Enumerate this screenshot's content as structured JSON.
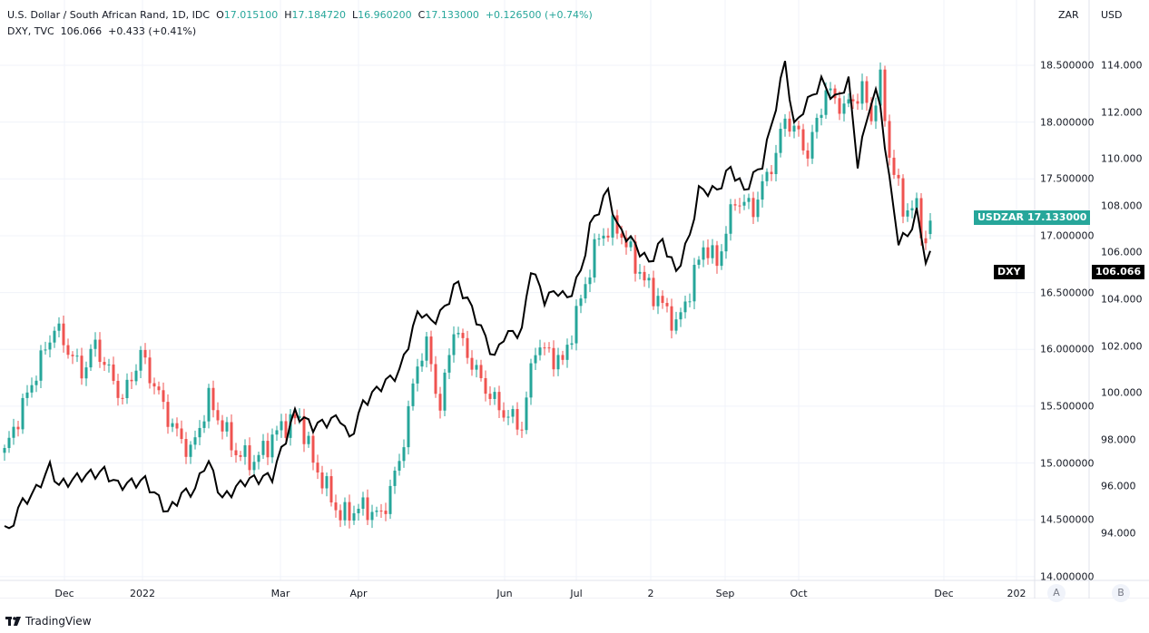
{
  "legend": {
    "main_title": "U.S. Dollar / South African Rand, 1D, IDC",
    "open_label": "O",
    "open": "17.015100",
    "high_label": "H",
    "high": "17.184720",
    "low_label": "L",
    "low": "16.960200",
    "close_label": "C",
    "close": "17.133000",
    "change": "+0.126500 (+0.74%)",
    "compare_title": "DXY, TVC",
    "compare_value": "106.066",
    "compare_change": "+0.433 (+0.41%)"
  },
  "axes": {
    "left_unit": "ZAR",
    "right_unit": "USD",
    "zar_ticks": [
      "18.500000",
      "18.000000",
      "17.500000",
      "17.000000",
      "16.500000",
      "16.000000",
      "15.500000",
      "15.000000",
      "14.500000",
      "14.000000"
    ],
    "usd_ticks": [
      "114.000",
      "112.000",
      "110.000",
      "108.000",
      "106.000",
      "104.000",
      "102.000",
      "100.000",
      "98.000",
      "96.000",
      "94.000"
    ],
    "time_ticks": [
      "Dec",
      "2022",
      "Mar",
      "Apr",
      "Jun",
      "Jul",
      "2",
      "Sep",
      "Oct",
      "Dec",
      "202"
    ],
    "btn_a": "A",
    "btn_b": "B"
  },
  "tags": {
    "usdzar_name": "USDZAR",
    "usdzar_value": "17.133000",
    "dxy_name": "DXY",
    "dxy_value": "106.066"
  },
  "colors": {
    "up": "#26a69a",
    "down": "#ef5350",
    "dxy": "#000000"
  },
  "footer": {
    "brand": "TradingView"
  },
  "chart_data": {
    "type": "candlestick+line",
    "bars": 205,
    "usdzar_keypoints": [
      [
        0,
        15.09
      ],
      [
        3,
        15.4
      ],
      [
        11,
        16.2
      ],
      [
        17,
        15.8
      ],
      [
        20,
        16.04
      ],
      [
        26,
        15.56
      ],
      [
        30,
        15.96
      ],
      [
        37,
        15.32
      ],
      [
        41,
        15.09
      ],
      [
        45,
        15.56
      ],
      [
        51,
        15.09
      ],
      [
        55,
        15.01
      ],
      [
        61,
        15.32
      ],
      [
        65,
        15.4
      ],
      [
        68,
        15.01
      ],
      [
        74,
        14.53
      ],
      [
        79,
        14.61
      ],
      [
        83,
        14.53
      ],
      [
        87,
        15.01
      ],
      [
        91,
        15.88
      ],
      [
        93,
        16.04
      ],
      [
        96,
        15.48
      ],
      [
        99,
        16.2
      ],
      [
        105,
        15.72
      ],
      [
        109,
        15.48
      ],
      [
        114,
        15.32
      ],
      [
        117,
        16.04
      ],
      [
        123,
        15.88
      ],
      [
        127,
        16.44
      ],
      [
        131,
        17.0
      ],
      [
        135,
        17.08
      ],
      [
        141,
        16.6
      ],
      [
        147,
        16.28
      ],
      [
        148,
        16.2
      ],
      [
        151,
        16.52
      ],
      [
        154,
        16.92
      ],
      [
        157,
        16.76
      ],
      [
        161,
        17.32
      ],
      [
        165,
        17.24
      ],
      [
        170,
        17.72
      ],
      [
        172,
        18.04
      ],
      [
        175,
        17.88
      ],
      [
        177,
        17.72
      ],
      [
        181,
        18.28
      ],
      [
        185,
        18.12
      ],
      [
        189,
        18.28
      ],
      [
        191,
        18.04
      ],
      [
        193,
        18.36
      ],
      [
        195,
        17.72
      ],
      [
        198,
        17.24
      ],
      [
        201,
        17.24
      ],
      [
        203,
        16.92
      ],
      [
        204.6,
        17.133
      ]
    ],
    "dxy_keypoints": [
      [
        0,
        94.31
      ],
      [
        1,
        94.0
      ],
      [
        3,
        95.09
      ],
      [
        7,
        95.86
      ],
      [
        10,
        96.83
      ],
      [
        12,
        96.05
      ],
      [
        17,
        96.44
      ],
      [
        22,
        96.64
      ],
      [
        25,
        96.05
      ],
      [
        31,
        96.25
      ],
      [
        36,
        94.89
      ],
      [
        39,
        95.67
      ],
      [
        42,
        95.86
      ],
      [
        44.6,
        97.22
      ],
      [
        48,
        95.47
      ],
      [
        53,
        96.25
      ],
      [
        59,
        96.44
      ],
      [
        64,
        99.16
      ],
      [
        68,
        98.57
      ],
      [
        74,
        98.96
      ],
      [
        76,
        97.99
      ],
      [
        79,
        99.54
      ],
      [
        83,
        100.32
      ],
      [
        87,
        100.9
      ],
      [
        91.4,
        103.6
      ],
      [
        94,
        103.0
      ],
      [
        97,
        103.6
      ],
      [
        99.6,
        104.78
      ],
      [
        103,
        103.6
      ],
      [
        108,
        101.48
      ],
      [
        110,
        102.45
      ],
      [
        114,
        102.64
      ],
      [
        116,
        105.36
      ],
      [
        119,
        104.0
      ],
      [
        122,
        104.39
      ],
      [
        124,
        104.0
      ],
      [
        127,
        105.16
      ],
      [
        129,
        107.1
      ],
      [
        133,
        108.65
      ],
      [
        135,
        107.1
      ],
      [
        139,
        106.33
      ],
      [
        142,
        105.55
      ],
      [
        145,
        106.52
      ],
      [
        148,
        105.16
      ],
      [
        151,
        106.71
      ],
      [
        153,
        108.65
      ],
      [
        157,
        108.65
      ],
      [
        160,
        109.62
      ],
      [
        163,
        108.65
      ],
      [
        167,
        109.81
      ],
      [
        169.4,
        111.75
      ],
      [
        172,
        114.16
      ],
      [
        174,
        111.36
      ],
      [
        176,
        112.14
      ],
      [
        180,
        113.3
      ],
      [
        183,
        112.53
      ],
      [
        186,
        113.3
      ],
      [
        188,
        109.81
      ],
      [
        191,
        112.53
      ],
      [
        192.6,
        112.91
      ],
      [
        195,
        109.04
      ],
      [
        197,
        106.52
      ],
      [
        199,
        106.71
      ],
      [
        201,
        107.68
      ],
      [
        203,
        105.74
      ],
      [
        204.6,
        106.066
      ]
    ],
    "zar_range": [
      14.0,
      18.5
    ],
    "usd_range": [
      94,
      114
    ]
  }
}
